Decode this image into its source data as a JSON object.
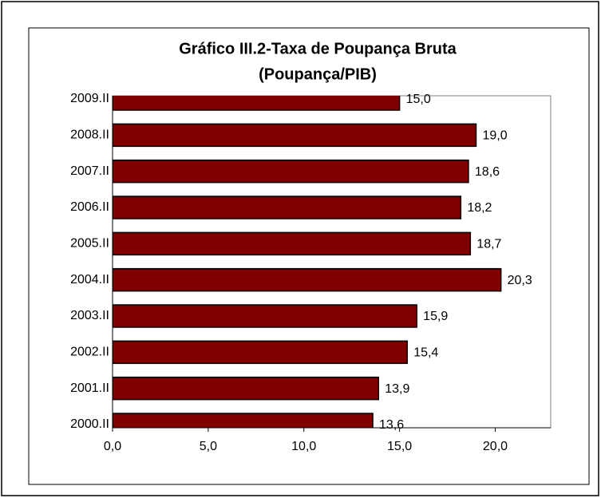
{
  "chart_data": {
    "type": "bar",
    "orientation": "horizontal",
    "title": [
      "Gráfico III.2-Taxa de Poupança Bruta",
      "(Poupança/PIB)"
    ],
    "categories": [
      "2009.II",
      "2008.II",
      "2007.II",
      "2006.II",
      "2005.II",
      "2004.II",
      "2003.II",
      "2002.II",
      "2001.II",
      "2000.II"
    ],
    "values": [
      15.0,
      19.0,
      18.6,
      18.2,
      18.7,
      20.3,
      15.9,
      15.4,
      13.9,
      13.6
    ],
    "value_labels": [
      "15,0",
      "19,0",
      "18,6",
      "18,2",
      "18,7",
      "20,3",
      "15,9",
      "15,4",
      "13,9",
      "13,6"
    ],
    "color": "#800000",
    "xlim": [
      0,
      22.9
    ],
    "xticks": [
      {
        "value": 0,
        "label": "0,0"
      },
      {
        "value": 5,
        "label": "5,0"
      },
      {
        "value": 10,
        "label": "10,0"
      },
      {
        "value": 15,
        "label": "15,0"
      },
      {
        "value": 20,
        "label": "20,0"
      }
    ],
    "grid": false
  }
}
